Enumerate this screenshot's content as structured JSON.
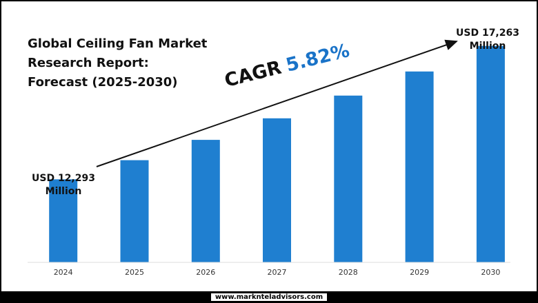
{
  "title_lines": [
    "Global Ceiling Fan Market",
    "Research Report:",
    "Forecast (2025-2030)"
  ],
  "cagr": {
    "label": "CAGR",
    "value": "5.82%"
  },
  "callouts": {
    "start": [
      "USD 12,293",
      "Million"
    ],
    "end": [
      "USD 17,263",
      "Million"
    ]
  },
  "footer": "www.marknteladvisors.com",
  "colors": {
    "bar": "#1f7fd0",
    "accent": "#1a73c8",
    "text": "#111111"
  },
  "chart_data": {
    "type": "bar",
    "title": "Global Ceiling Fan Market Research Report: Forecast (2025-2030)",
    "categories": [
      "2024",
      "2025",
      "2026",
      "2027",
      "2028",
      "2029",
      "2030"
    ],
    "values": [
      12293,
      13008,
      13765,
      14566,
      15414,
      16311,
      17263
    ],
    "ylim": [
      9200,
      18000
    ],
    "xlabel": "",
    "ylabel": "",
    "grid": false,
    "legend": "none",
    "annotations": [
      "USD 12,293 Million",
      "USD 17,263 Million",
      "CAGR 5.82%"
    ]
  }
}
